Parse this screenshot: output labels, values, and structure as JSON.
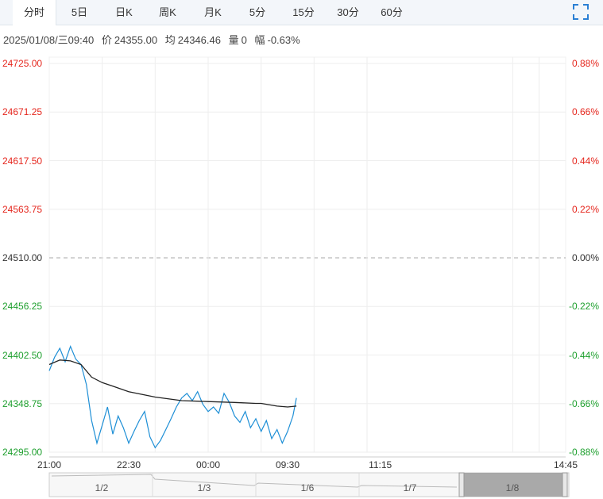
{
  "tabs": [
    {
      "label": "分时",
      "active": true
    },
    {
      "label": "5日"
    },
    {
      "label": "日K"
    },
    {
      "label": "周K"
    },
    {
      "label": "月K"
    },
    {
      "label": "5分"
    },
    {
      "label": "15分"
    },
    {
      "label": "30分"
    },
    {
      "label": "60分"
    }
  ],
  "info": {
    "datetime": "2025/01/08/三09:40",
    "price_label": "价",
    "price": "24355.00",
    "avg_label": "均",
    "avg": "24346.46",
    "vol_label": "量",
    "vol": "0",
    "range_label": "幅",
    "range": "-0.63%"
  },
  "colors": {
    "up": "#e5261d",
    "down": "#1d9f2d",
    "neutral": "#333333",
    "price_line": "#1e8fd6",
    "avg_line": "#222222",
    "grid": "#eeeeee"
  },
  "navigator": {
    "dates": [
      "1/2",
      "1/3",
      "1/6",
      "1/7",
      "1/8"
    ]
  },
  "chart_data": {
    "type": "line",
    "title": "",
    "xlabel": "",
    "ylabel": "",
    "ylim": [
      24295.0,
      24725.0
    ],
    "prev_close": "24510.00",
    "y_ticks": [
      "24725.00",
      "24671.25",
      "24617.50",
      "24563.75",
      "24510.00",
      "24456.25",
      "24402.50",
      "24348.75",
      "24295.00"
    ],
    "pct_ticks": [
      "0.88%",
      "0.66%",
      "0.44%",
      "0.22%",
      "0.00%",
      "-0.22%",
      "-0.44%",
      "-0.66%",
      "-0.88%"
    ],
    "x_ticks": [
      "21:00",
      "22:30",
      "00:00",
      "09:30",
      "11:15",
      "14:45"
    ],
    "x_sessions": [
      "21:00",
      "22:30",
      "00:00",
      "09:30",
      "11:15",
      "14:45"
    ],
    "grid": true,
    "series": [
      {
        "key": "price",
        "x": [
          "21:00",
          "21:06",
          "21:12",
          "21:18",
          "21:24",
          "21:30",
          "21:36",
          "21:42",
          "21:48",
          "21:54",
          "22:00",
          "22:06",
          "22:12",
          "22:18",
          "22:24",
          "22:30",
          "22:36",
          "22:42",
          "22:48",
          "22:54",
          "23:00",
          "23:06",
          "23:12",
          "23:18",
          "23:24",
          "23:30",
          "23:36",
          "23:42",
          "23:48",
          "23:54",
          "00:00",
          "00:06",
          "00:12",
          "00:18",
          "00:24",
          "00:30",
          "00:36",
          "00:42",
          "00:48",
          "00:54",
          "09:00",
          "09:06",
          "09:12",
          "09:18",
          "09:24",
          "09:30",
          "09:36",
          "09:40"
        ],
        "values": [
          24385,
          24400,
          24410,
          24395,
          24412,
          24398,
          24392,
          24370,
          24330,
          24305,
          24325,
          24345,
          24315,
          24335,
          24322,
          24305,
          24318,
          24330,
          24340,
          24312,
          24300,
          24308,
          24320,
          24332,
          24345,
          24355,
          24360,
          24352,
          24362,
          24348,
          24340,
          24345,
          24338,
          24360,
          24350,
          24335,
          24328,
          24340,
          24322,
          24332,
          24318,
          24330,
          24310,
          24320,
          24305,
          24318,
          24335,
          24355
        ]
      },
      {
        "key": "avg",
        "x": [
          "21:00",
          "21:12",
          "21:24",
          "21:36",
          "21:48",
          "22:00",
          "22:12",
          "22:30",
          "23:00",
          "23:30",
          "00:00",
          "00:30",
          "00:54",
          "09:00",
          "09:18",
          "09:30",
          "09:40"
        ],
        "values": [
          24392,
          24397,
          24396,
          24392,
          24378,
          24372,
          24368,
          24362,
          24356,
          24352,
          24351,
          24350,
          24349,
          24349,
          24346,
          24345,
          24346
        ]
      }
    ]
  }
}
